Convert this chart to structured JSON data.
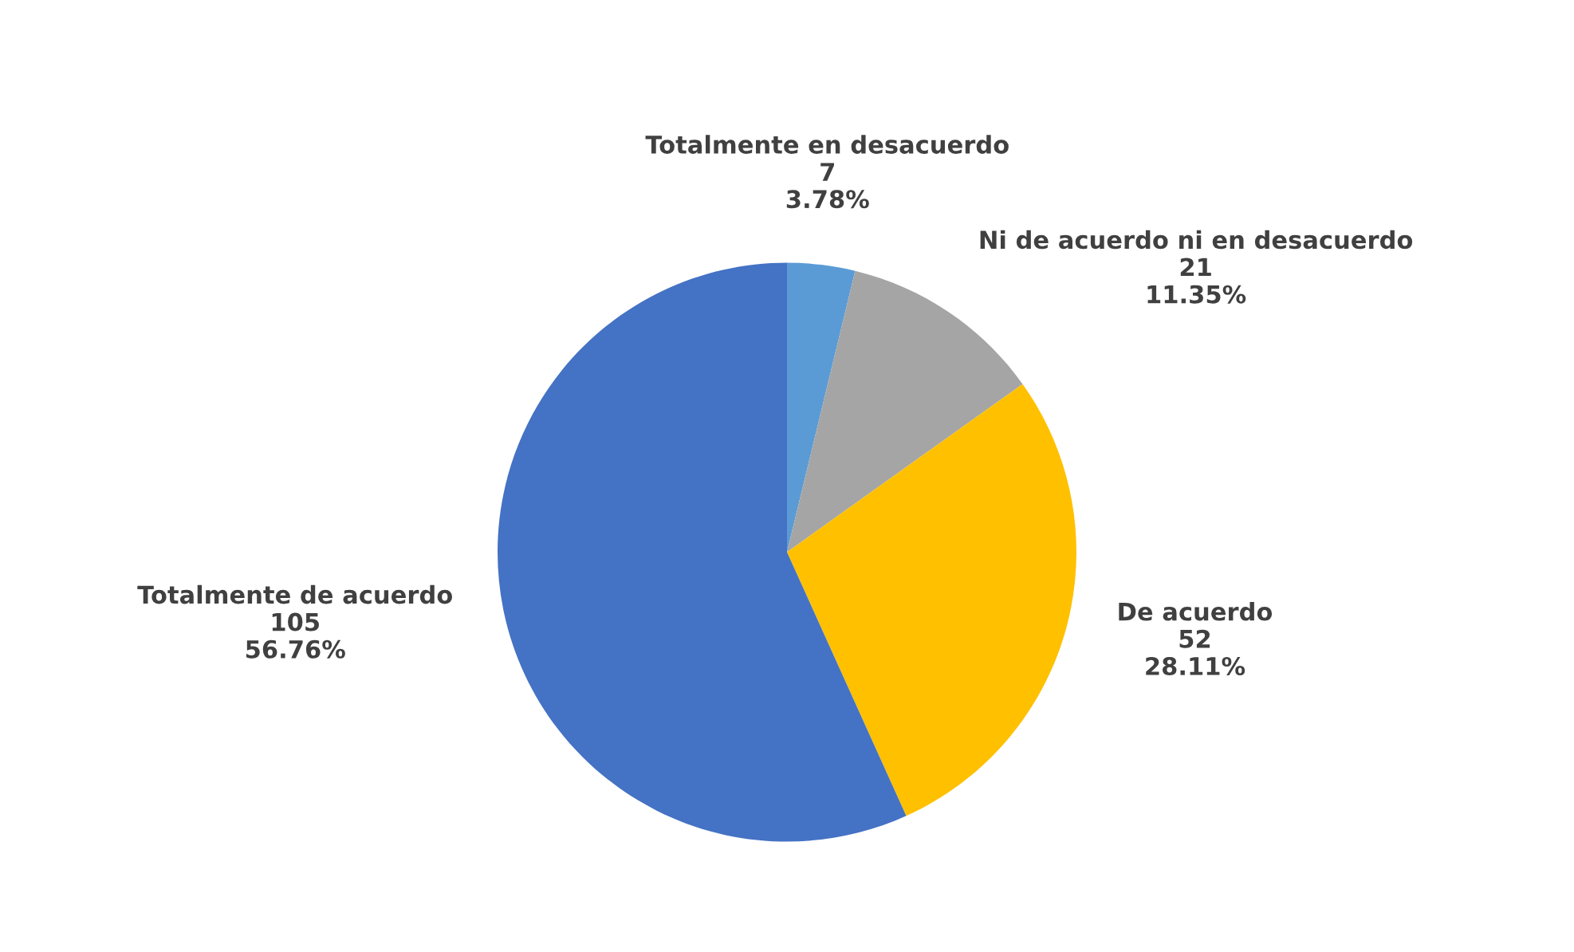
{
  "chart_data": {
    "type": "pie",
    "categories": [
      "Totalmente en desacuerdo",
      "Ni de acuerdo ni en desacuerdo",
      "De acuerdo",
      "Totalmente de acuerdo"
    ],
    "values": [
      7,
      21,
      52,
      105
    ],
    "value_labels": [
      "7\n3.78%",
      "21\n11.35%",
      "52\n28.11%",
      "105\n56.76%"
    ],
    "colors": [
      "#5b9bd5",
      "#a5a5a5",
      "#ffc000",
      "#4472c4"
    ]
  }
}
